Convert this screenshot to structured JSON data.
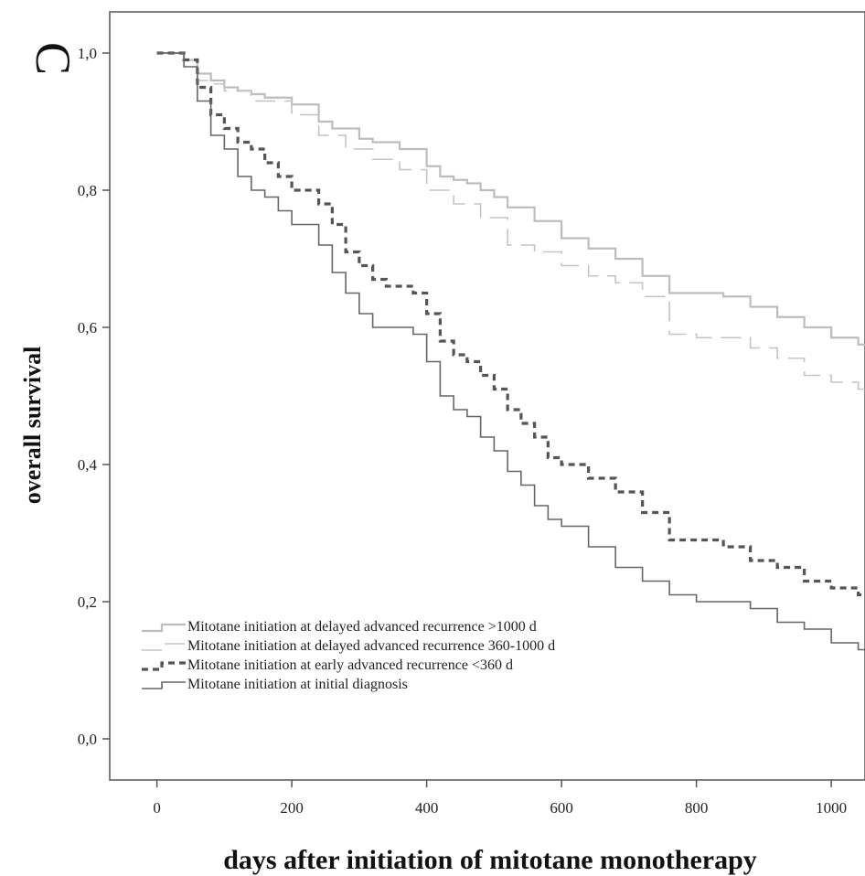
{
  "panel_label": "C",
  "chart_data": {
    "type": "line",
    "title": "",
    "xlabel": "days after initiation of mitotane monotherapy",
    "ylabel": "overall survival",
    "xlim": [
      -70,
      1050
    ],
    "ylim": [
      -0.06,
      1.06
    ],
    "x_ticks": [
      0,
      200,
      400,
      600,
      800,
      1000
    ],
    "x_tick_labels": [
      "0",
      "200",
      "400",
      "600",
      "800",
      "1000"
    ],
    "y_ticks": [
      0.0,
      0.2,
      0.4,
      0.6,
      0.8,
      1.0
    ],
    "y_tick_labels": [
      "0,0",
      "0,2",
      "0,4",
      "0,6",
      "0,8",
      "1,0"
    ],
    "grid": false,
    "legend_position": "bottom-left",
    "series": [
      {
        "name": "Mitotane initiation at delayed advanced recurrence >1000 d",
        "color": "#bdbdbd",
        "style": "solid",
        "x": [
          0,
          40,
          60,
          80,
          100,
          120,
          140,
          160,
          200,
          240,
          260,
          300,
          320,
          360,
          400,
          420,
          440,
          460,
          480,
          500,
          520,
          560,
          600,
          640,
          680,
          720,
          760,
          800,
          840,
          880,
          920,
          960,
          1000,
          1040
        ],
        "y": [
          1.0,
          0.99,
          0.97,
          0.96,
          0.95,
          0.945,
          0.94,
          0.935,
          0.925,
          0.9,
          0.89,
          0.875,
          0.87,
          0.86,
          0.835,
          0.82,
          0.815,
          0.81,
          0.8,
          0.79,
          0.775,
          0.755,
          0.73,
          0.715,
          0.7,
          0.675,
          0.65,
          0.65,
          0.645,
          0.63,
          0.615,
          0.6,
          0.585,
          0.575
        ]
      },
      {
        "name": "Mitotane initiation at delayed advanced recurrence 360-1000 d",
        "color": "#c4c4c4",
        "style": "dashed",
        "x": [
          0,
          40,
          60,
          80,
          100,
          140,
          200,
          240,
          280,
          320,
          360,
          400,
          440,
          480,
          520,
          560,
          600,
          640,
          680,
          720,
          760,
          800,
          840,
          880,
          920,
          960,
          1000,
          1040
        ],
        "y": [
          1.0,
          0.99,
          0.96,
          0.955,
          0.945,
          0.93,
          0.91,
          0.88,
          0.86,
          0.845,
          0.83,
          0.8,
          0.78,
          0.76,
          0.72,
          0.71,
          0.69,
          0.675,
          0.665,
          0.645,
          0.59,
          0.585,
          0.585,
          0.57,
          0.555,
          0.53,
          0.52,
          0.51
        ]
      },
      {
        "name": "Mitotane initiation at early advanced recurrence <360 d",
        "color": "#555555",
        "style": "dotted",
        "x": [
          0,
          40,
          60,
          80,
          100,
          120,
          140,
          160,
          180,
          200,
          240,
          260,
          280,
          300,
          320,
          340,
          360,
          380,
          400,
          420,
          440,
          460,
          480,
          500,
          520,
          540,
          560,
          580,
          600,
          640,
          680,
          720,
          760,
          800,
          840,
          880,
          920,
          960,
          1000,
          1040
        ],
        "y": [
          1.0,
          0.99,
          0.95,
          0.91,
          0.89,
          0.87,
          0.86,
          0.84,
          0.82,
          0.8,
          0.78,
          0.75,
          0.71,
          0.69,
          0.67,
          0.66,
          0.66,
          0.65,
          0.62,
          0.58,
          0.56,
          0.55,
          0.53,
          0.51,
          0.48,
          0.46,
          0.44,
          0.41,
          0.4,
          0.38,
          0.36,
          0.33,
          0.29,
          0.29,
          0.28,
          0.26,
          0.25,
          0.23,
          0.22,
          0.21
        ]
      },
      {
        "name": "Mitotane initiation at initial diagnosis",
        "color": "#666666",
        "style": "solid",
        "x": [
          0,
          40,
          60,
          80,
          100,
          120,
          140,
          160,
          180,
          200,
          240,
          260,
          280,
          300,
          320,
          340,
          360,
          380,
          400,
          420,
          440,
          460,
          480,
          500,
          520,
          540,
          560,
          580,
          600,
          640,
          680,
          720,
          760,
          800,
          840,
          880,
          920,
          960,
          1000,
          1040
        ],
        "y": [
          1.0,
          0.98,
          0.93,
          0.88,
          0.86,
          0.82,
          0.8,
          0.79,
          0.77,
          0.75,
          0.72,
          0.68,
          0.65,
          0.62,
          0.6,
          0.6,
          0.6,
          0.59,
          0.55,
          0.5,
          0.48,
          0.47,
          0.44,
          0.42,
          0.39,
          0.37,
          0.34,
          0.32,
          0.31,
          0.28,
          0.25,
          0.23,
          0.21,
          0.2,
          0.2,
          0.19,
          0.17,
          0.16,
          0.14,
          0.13
        ]
      }
    ]
  }
}
